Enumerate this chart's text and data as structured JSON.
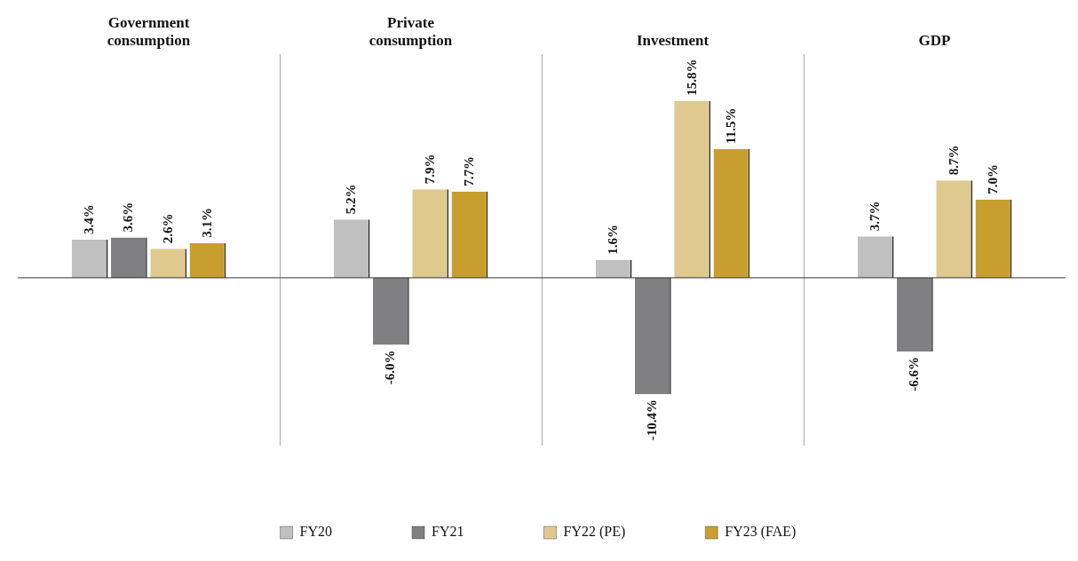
{
  "chart_data": {
    "type": "bar",
    "categories": [
      "Government consumption",
      "Private consumption",
      "Investment",
      "GDP"
    ],
    "series": [
      {
        "name": "FY20",
        "color": "#c0c0c0",
        "values": [
          3.4,
          5.2,
          1.6,
          3.7
        ],
        "value_labels": [
          "3.4%",
          "5.2%",
          "1.6%",
          "3.7%"
        ]
      },
      {
        "name": "FY21",
        "color": "#808083",
        "values": [
          3.6,
          -6.0,
          -10.4,
          -6.6
        ],
        "value_labels": [
          "3.6%",
          "-6.0%",
          "-10.4%",
          "-6.6%"
        ]
      },
      {
        "name": "FY22 (PE)",
        "color": "#e0c98e",
        "values": [
          2.6,
          7.9,
          15.8,
          8.7
        ],
        "value_labels": [
          "2.6%",
          "7.9%",
          "15.8%",
          "8.7%"
        ]
      },
      {
        "name": "FY23 (FAE)",
        "color": "#c89f2e",
        "values": [
          3.1,
          7.7,
          11.5,
          7.0
        ],
        "value_labels": [
          "3.1%",
          "7.7%",
          "11.5%",
          "7.0%"
        ]
      }
    ],
    "tick_labels": "x",
    "grid": "x",
    "legend": "bottom"
  }
}
